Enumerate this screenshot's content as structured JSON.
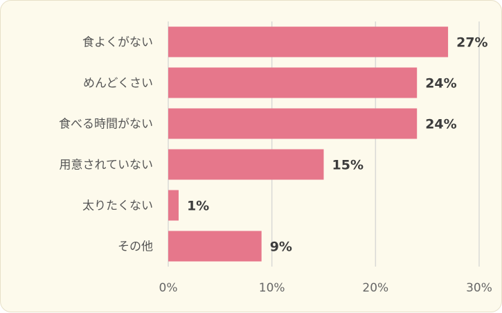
{
  "chart_data": {
    "type": "bar",
    "orientation": "horizontal",
    "categories": [
      "食よくがない",
      "めんどくさい",
      "食べる時間がない",
      "用意されていない",
      "太りたくない",
      "その他"
    ],
    "values": [
      27,
      24,
      24,
      15,
      1,
      9
    ],
    "value_labels": [
      "27%",
      "24%",
      "24%",
      "15%",
      "1%",
      "9%"
    ],
    "x_ticks": [
      "0%",
      "10%",
      "20%",
      "30%"
    ],
    "xlim": [
      0,
      30
    ],
    "grid": true,
    "bar_color": "#e6778b",
    "background_color": "#fdfaec"
  }
}
